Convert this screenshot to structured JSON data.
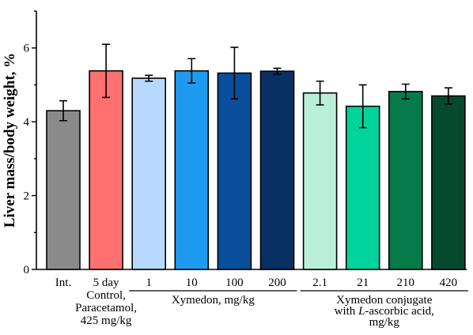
{
  "chart_data": {
    "type": "bar",
    "ylabel": "Liver mass/body weight, %",
    "ylim": [
      0,
      7
    ],
    "yticks": [
      0,
      2,
      4,
      6
    ],
    "grid": false,
    "categories": [
      "Int.",
      "5 day",
      "1",
      "10",
      "100",
      "200",
      "2.1",
      "21",
      "210",
      "420"
    ],
    "values": [
      4.3,
      5.38,
      5.18,
      5.38,
      5.32,
      5.37,
      4.78,
      4.42,
      4.82,
      4.7
    ],
    "errors": [
      0.27,
      0.72,
      0.08,
      0.33,
      0.7,
      0.08,
      0.32,
      0.58,
      0.2,
      0.22
    ],
    "colors": [
      "#8a8a8a",
      "#ff7070",
      "#b8d9ff",
      "#1e9bf0",
      "#0a4f9c",
      "#083063",
      "#b9efd8",
      "#00d49c",
      "#077a4a",
      "#064a2e"
    ],
    "subtitle_lines": [
      "Control,",
      "Paracetamol,",
      "425 mg/kg"
    ],
    "groups": [
      {
        "label": "Xymedon, mg/kg",
        "lines": [
          "Xymedon, mg/kg"
        ]
      },
      {
        "label": "Xymedon conjugate with L-ascorbic acid, mg/kg",
        "lines": [
          "Xymedon conjugate",
          "with L-ascorbic acid,",
          "mg/kg"
        ]
      }
    ]
  }
}
